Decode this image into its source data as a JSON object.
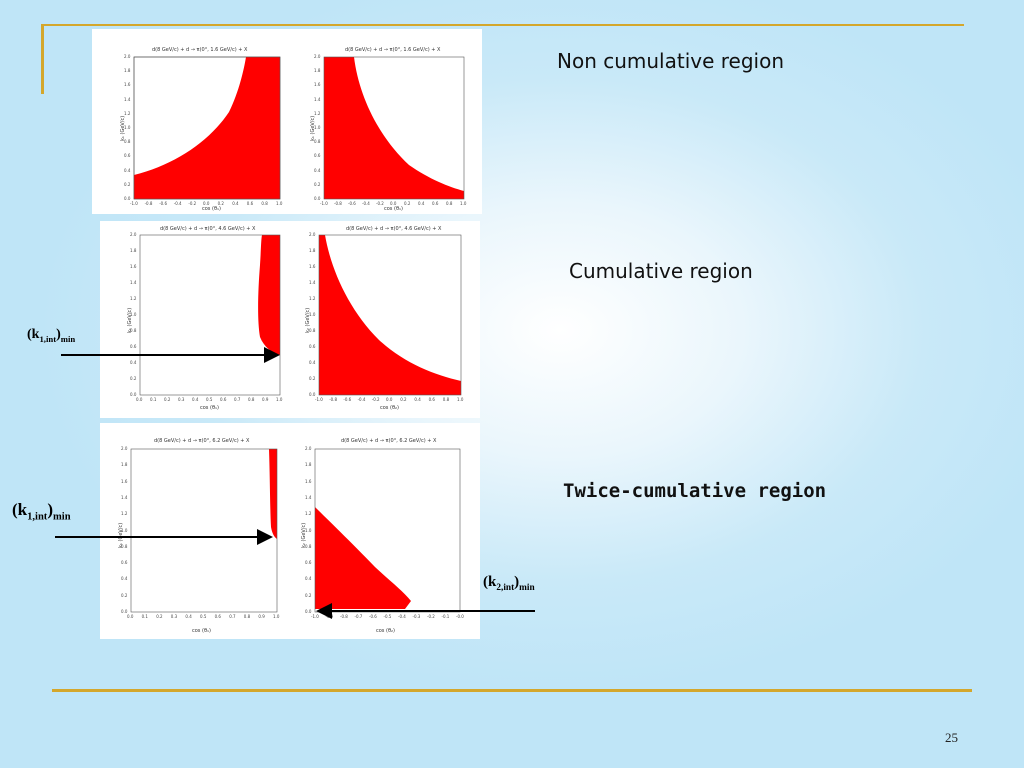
{
  "slide": {
    "page_number": "25",
    "accent_color": "#d4a72c",
    "fill_color": "#ff0000"
  },
  "labels": {
    "non_cumulative": "Non cumulative region",
    "cumulative": "Cumulative region",
    "twice_cumulative": "Twice-cumulative region",
    "k1_open": "(k",
    "k1_sub": "1,int",
    "k2_sub": "2,int",
    "k_close": ")",
    "k_min": "min",
    "k2_open": "(k"
  },
  "plots": {
    "r1_left": {
      "title": "d(8 GeV/c) + d  → π(0°, 1.6 GeV/c) + X",
      "xlabel": "cos (θ₁)",
      "ylabel": "k₁ (GeV/c)"
    },
    "r1_right": {
      "title": "d(8 GeV/c) + d  → π(0°, 1.6 GeV/c) + X",
      "xlabel": "cos (θ₁)",
      "ylabel": "k₁ (GeV/c)"
    },
    "r2_left": {
      "title": "d(8 GeV/c) + d  → π(0°, 4.6 GeV/c) + X",
      "xlabel": "cos (θ₁)",
      "ylabel": "k₁ (GeV/c)"
    },
    "r2_right": {
      "title": "d(8 GeV/c) + d  → π(0°, 4.6 GeV/c) + X",
      "xlabel": "cos (θ₂)",
      "ylabel": "k₂ (GeV/c)"
    },
    "r3_left": {
      "title": "d(8 GeV/c) + d  → π(0°, 6.2 GeV/c) + X",
      "xlabel": "cos (θ₁)",
      "ylabel": "k₁ (GeV/c)"
    },
    "r3_right": {
      "title": "d(8 GeV/c) + d  → π(0°, 6.2 GeV/c) + X",
      "xlabel": "cos (θ₂)",
      "ylabel": "k₂ (GeV/c)"
    }
  },
  "ticks": {
    "y": [
      "2.0",
      "1.8",
      "1.6",
      "1.4",
      "1.2",
      "1.0",
      "0.8",
      "0.6",
      "0.4",
      "0.2",
      "0.0"
    ],
    "x_sym": [
      "-1.0",
      "-0.8",
      "-0.6",
      "-0.4",
      "-0.2",
      "0.0",
      "0.2",
      "0.4",
      "0.6",
      "0.8",
      "1.0"
    ],
    "x_pos": [
      "0.0",
      "0.1",
      "0.2",
      "0.3",
      "0.4",
      "0.5",
      "0.6",
      "0.7",
      "0.8",
      "0.9",
      "1.0"
    ],
    "x_neg": [
      "-1.0",
      "-0.9",
      "-0.8",
      "-0.7",
      "-0.6",
      "-0.5",
      "-0.4",
      "-0.3",
      "-0.2",
      "-0.1",
      "-0.0"
    ]
  }
}
